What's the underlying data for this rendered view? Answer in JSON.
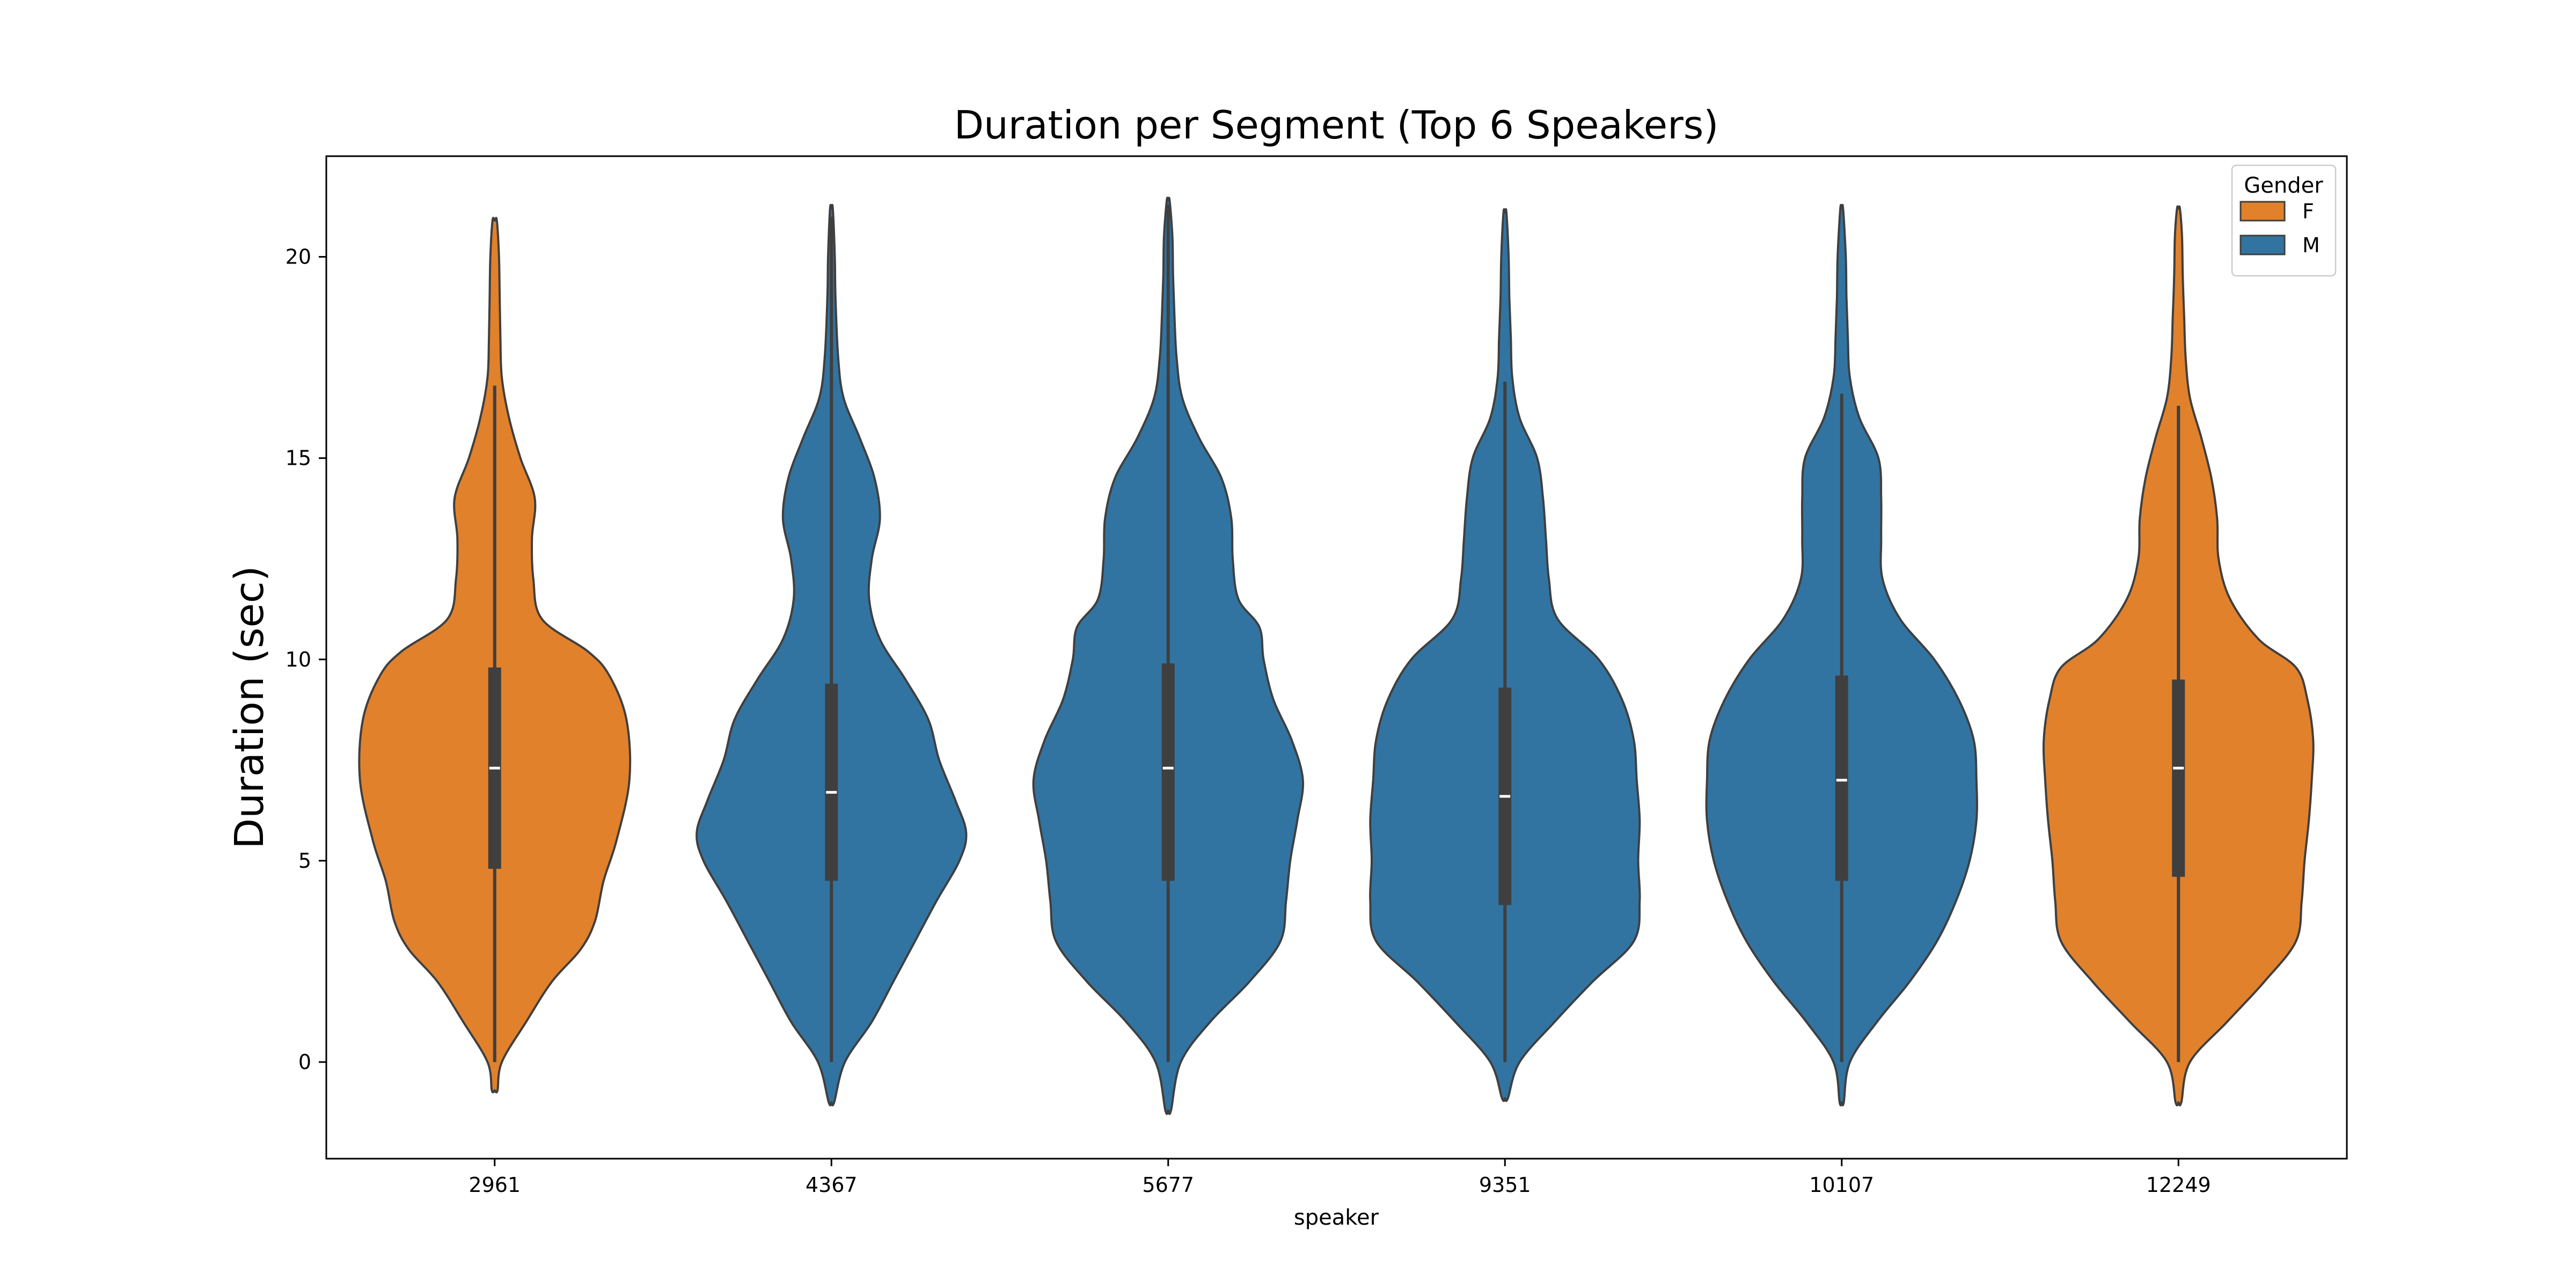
{
  "chart_data": {
    "type": "violin",
    "title": "Duration per Segment (Top 6 Speakers)",
    "xlabel": "speaker",
    "ylabel": "Duration (sec)",
    "ylim": [
      -2.4,
      22.5
    ],
    "yticks": [
      0,
      5,
      10,
      15,
      20
    ],
    "grid": false,
    "legend": {
      "title": "Gender",
      "position": "top-right",
      "entries": [
        {
          "label": "F",
          "color": "#e1812c"
        },
        {
          "label": "M",
          "color": "#3274a1"
        }
      ]
    },
    "categories": [
      "2961",
      "4367",
      "5677",
      "9351",
      "10107",
      "12249"
    ],
    "series": [
      {
        "category": "2961",
        "gender": "F",
        "color": "#e1812c",
        "min": -0.7,
        "max": 20.9,
        "q1": 4.8,
        "median": 7.3,
        "q3": 9.8,
        "whisker_low": 0.0,
        "whisker_high": 16.8,
        "density": [
          [
            -0.7,
            0.2
          ],
          [
            0,
            0.5
          ],
          [
            1,
            2.2
          ],
          [
            2,
            4.0
          ],
          [
            2.8,
            6.0
          ],
          [
            3.5,
            7.0
          ],
          [
            4.5,
            7.6
          ],
          [
            5.5,
            8.5
          ],
          [
            7,
            9.4
          ],
          [
            8.5,
            9.2
          ],
          [
            9.6,
            8.0
          ],
          [
            10.2,
            6.5
          ],
          [
            11,
            3.3
          ],
          [
            12,
            2.7
          ],
          [
            13,
            2.6
          ],
          [
            14,
            2.8
          ],
          [
            15,
            1.8
          ],
          [
            16,
            1.0
          ],
          [
            17,
            0.5
          ],
          [
            18,
            0.4
          ],
          [
            19,
            0.35
          ],
          [
            20,
            0.3
          ],
          [
            20.9,
            0.15
          ]
        ]
      },
      {
        "category": "4367",
        "gender": "M",
        "color": "#3274a1",
        "min": -1.0,
        "max": 21.2,
        "q1": 4.5,
        "median": 6.7,
        "q3": 9.4,
        "whisker_low": 0.0,
        "whisker_high": 21.0,
        "density": [
          [
            -1,
            0.2
          ],
          [
            0,
            1.0
          ],
          [
            1,
            3.0
          ],
          [
            2,
            4.6
          ],
          [
            3,
            6.2
          ],
          [
            4,
            7.8
          ],
          [
            5,
            9.5
          ],
          [
            5.7,
            10.0
          ],
          [
            6.5,
            9.2
          ],
          [
            7.5,
            8.0
          ],
          [
            8.5,
            7.2
          ],
          [
            9.5,
            5.5
          ],
          [
            10.5,
            3.6
          ],
          [
            11.5,
            2.8
          ],
          [
            12.5,
            3.0
          ],
          [
            13.5,
            3.6
          ],
          [
            14.5,
            3.2
          ],
          [
            15.5,
            2.1
          ],
          [
            16.5,
            0.9
          ],
          [
            17.5,
            0.5
          ],
          [
            19,
            0.3
          ],
          [
            20,
            0.25
          ],
          [
            21.2,
            0.1
          ]
        ]
      },
      {
        "category": "5677",
        "gender": "M",
        "color": "#3274a1",
        "min": -1.2,
        "max": 21.4,
        "q1": 4.5,
        "median": 7.3,
        "q3": 9.9,
        "whisker_low": 0.0,
        "whisker_high": 21.3,
        "density": [
          [
            -1.2,
            0.2
          ],
          [
            0,
            0.9
          ],
          [
            1,
            3.0
          ],
          [
            2,
            5.8
          ],
          [
            3,
            8.0
          ],
          [
            4,
            8.4
          ],
          [
            5,
            8.7
          ],
          [
            6,
            9.2
          ],
          [
            7,
            9.6
          ],
          [
            8,
            8.8
          ],
          [
            9,
            7.5
          ],
          [
            10,
            6.8
          ],
          [
            10.8,
            6.5
          ],
          [
            11.5,
            5.0
          ],
          [
            12.5,
            4.6
          ],
          [
            13.5,
            4.5
          ],
          [
            14.5,
            3.8
          ],
          [
            15.5,
            2.2
          ],
          [
            16.5,
            1.0
          ],
          [
            17.5,
            0.6
          ],
          [
            18.5,
            0.45
          ],
          [
            19.5,
            0.35
          ],
          [
            20.5,
            0.3
          ],
          [
            21.4,
            0.1
          ]
        ]
      },
      {
        "category": "9351",
        "gender": "M",
        "color": "#3274a1",
        "min": -0.9,
        "max": 21.1,
        "q1": 3.9,
        "median": 6.6,
        "q3": 9.3,
        "whisker_low": 0.0,
        "whisker_high": 16.9,
        "density": [
          [
            -0.9,
            0.2
          ],
          [
            0,
            1.0
          ],
          [
            1,
            3.4
          ],
          [
            2,
            6.0
          ],
          [
            3,
            8.8
          ],
          [
            4,
            9.2
          ],
          [
            5,
            9.1
          ],
          [
            6,
            9.2
          ],
          [
            7,
            9.0
          ],
          [
            8,
            8.8
          ],
          [
            9,
            8.0
          ],
          [
            10,
            6.4
          ],
          [
            11,
            3.6
          ],
          [
            12,
            3.0
          ],
          [
            13,
            2.8
          ],
          [
            14,
            2.6
          ],
          [
            15,
            2.2
          ],
          [
            16,
            1.0
          ],
          [
            17,
            0.5
          ],
          [
            18,
            0.4
          ],
          [
            19,
            0.3
          ],
          [
            20,
            0.25
          ],
          [
            21.1,
            0.1
          ]
        ]
      },
      {
        "category": "10107",
        "gender": "M",
        "color": "#3274a1",
        "min": -1.0,
        "max": 21.2,
        "q1": 4.5,
        "median": 7.0,
        "q3": 9.6,
        "whisker_low": 0.0,
        "whisker_high": 16.6,
        "density": [
          [
            -1,
            0.15
          ],
          [
            0,
            0.6
          ],
          [
            1,
            2.6
          ],
          [
            2,
            5.0
          ],
          [
            3,
            7.0
          ],
          [
            4,
            8.4
          ],
          [
            5,
            9.4
          ],
          [
            6,
            9.9
          ],
          [
            7,
            9.9
          ],
          [
            8,
            9.7
          ],
          [
            9,
            8.6
          ],
          [
            10,
            6.8
          ],
          [
            11,
            4.3
          ],
          [
            12,
            3.0
          ],
          [
            13,
            2.9
          ],
          [
            14,
            2.9
          ],
          [
            15,
            2.7
          ],
          [
            16,
            1.3
          ],
          [
            17,
            0.6
          ],
          [
            18,
            0.45
          ],
          [
            19,
            0.35
          ],
          [
            20,
            0.3
          ],
          [
            21.2,
            0.1
          ]
        ]
      },
      {
        "category": "12249",
        "gender": "F",
        "color": "#e1812c",
        "min": -1.0,
        "max": 21.2,
        "q1": 4.6,
        "median": 7.3,
        "q3": 9.5,
        "whisker_low": 0.0,
        "whisker_high": 16.3,
        "density": [
          [
            -1,
            0.2
          ],
          [
            0,
            0.8
          ],
          [
            1,
            3.4
          ],
          [
            2,
            6.0
          ],
          [
            3,
            8.2
          ],
          [
            4,
            8.6
          ],
          [
            5,
            8.8
          ],
          [
            6,
            9.1
          ],
          [
            7,
            9.3
          ],
          [
            8,
            9.4
          ],
          [
            9,
            9.0
          ],
          [
            9.8,
            8.2
          ],
          [
            10.5,
            5.6
          ],
          [
            11.5,
            3.6
          ],
          [
            12.5,
            2.8
          ],
          [
            13.5,
            2.7
          ],
          [
            14.5,
            2.3
          ],
          [
            15.5,
            1.6
          ],
          [
            16.5,
            0.8
          ],
          [
            17.5,
            0.5
          ],
          [
            18.5,
            0.4
          ],
          [
            19.5,
            0.3
          ],
          [
            20.5,
            0.25
          ],
          [
            21.2,
            0.1
          ]
        ]
      }
    ]
  }
}
